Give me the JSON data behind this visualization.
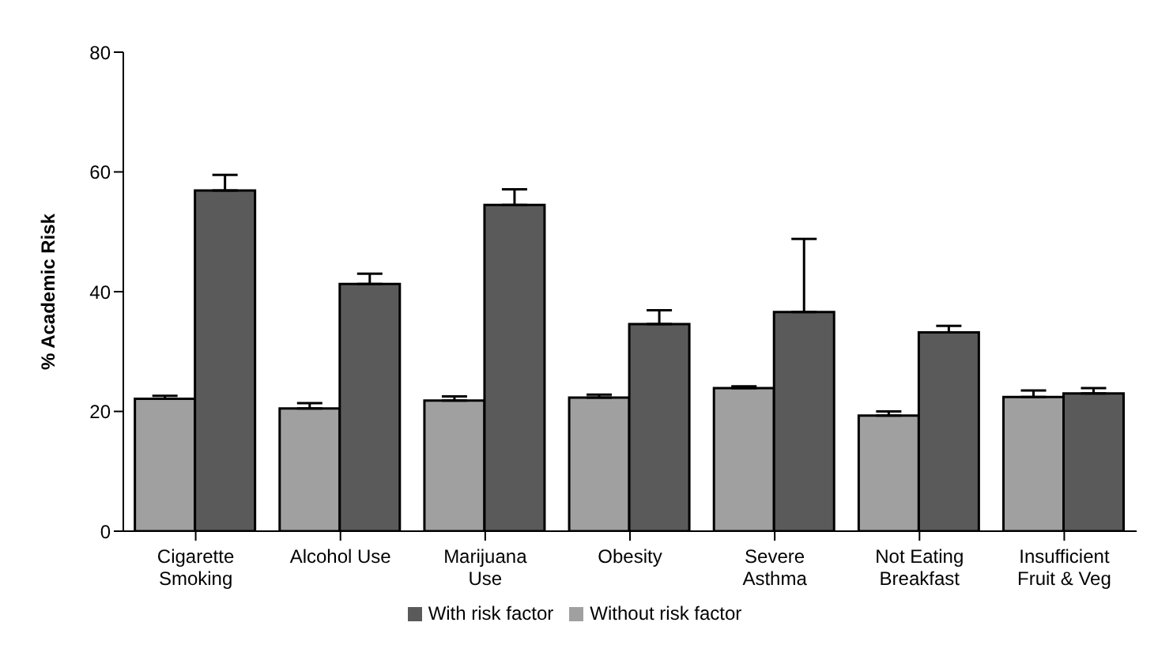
{
  "chart_data": {
    "type": "bar",
    "ylabel": "% Academic Risk",
    "categories": [
      "Cigarette Smoking",
      "Alcohol Use",
      "Marijuana Use",
      "Obesity",
      "Severe Asthma",
      "Not Eating Breakfast",
      "Insufficient Fruit & Veg"
    ],
    "series": [
      {
        "name": "Without risk factor",
        "color": "#a0a0a0",
        "values": [
          22.1,
          20.5,
          21.8,
          22.3,
          23.9,
          19.3,
          22.4
        ],
        "errors": [
          [
            22.1,
            22.6
          ],
          [
            20.5,
            21.4
          ],
          [
            21.8,
            22.5
          ],
          [
            22.3,
            22.8
          ],
          [
            23.9,
            24.2
          ],
          [
            19.3,
            20.0
          ],
          [
            22.4,
            23.5
          ]
        ]
      },
      {
        "name": "With risk factor",
        "color": "#5a5a5a",
        "values": [
          56.9,
          41.3,
          54.5,
          34.6,
          36.6,
          33.2,
          23.0
        ],
        "errors": [
          [
            56.9,
            59.5
          ],
          [
            41.3,
            43.0
          ],
          [
            54.5,
            57.1
          ],
          [
            34.6,
            36.9
          ],
          [
            36.6,
            48.8
          ],
          [
            33.2,
            34.3
          ],
          [
            23.0,
            23.9
          ]
        ]
      }
    ],
    "ylim": [
      0,
      80
    ],
    "yticks": [
      0,
      20,
      40,
      60,
      80
    ],
    "grid": false,
    "legend": "bottom"
  }
}
